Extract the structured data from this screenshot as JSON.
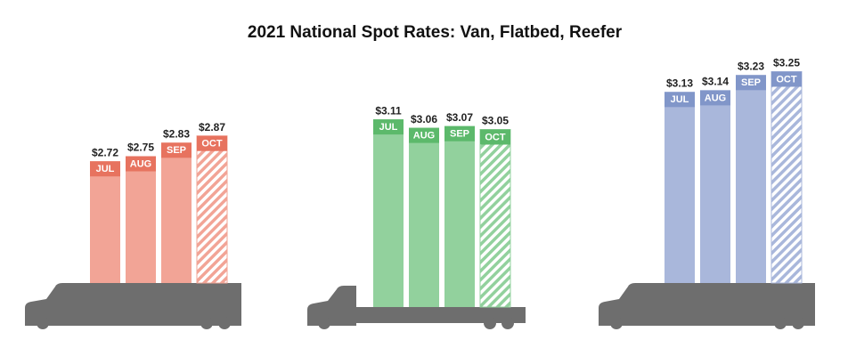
{
  "chart_data": {
    "type": "bar",
    "title": "2021 National Spot Rates: Van, Flatbed, Reefer",
    "categories": [
      "JUL",
      "AUG",
      "SEP",
      "OCT"
    ],
    "ylim": [
      2,
      3.3
    ],
    "series": [
      {
        "color": "#f2a496",
        "label_color": "#e7735f",
        "values": [
          2.72,
          2.75,
          2.83,
          2.87
        ],
        "value_labels": [
          "$2.72",
          "$2.75",
          "$2.83",
          "$2.87"
        ]
      },
      {
        "color": "#92d19d",
        "label_color": "#5cb96b",
        "values": [
          3.11,
          3.06,
          3.07,
          3.05
        ],
        "value_labels": [
          "$3.11",
          "$3.06",
          "$3.07",
          "$3.05"
        ]
      },
      {
        "color": "#a9b7db",
        "label_color": "#8196c9",
        "values": [
          3.13,
          3.14,
          3.23,
          3.25
        ],
        "value_labels": [
          "$3.13",
          "$3.14",
          "$3.23",
          "$3.25"
        ]
      }
    ]
  }
}
